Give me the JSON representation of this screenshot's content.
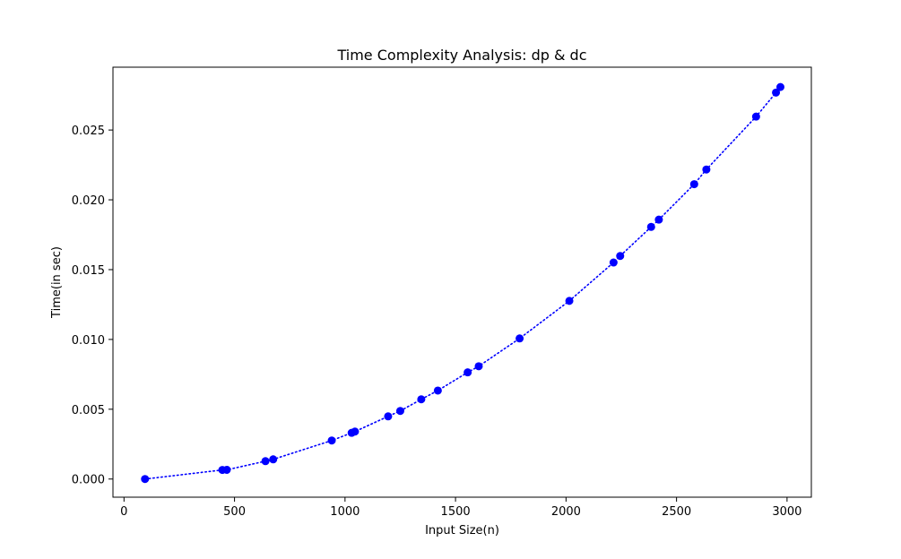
{
  "chart_data": {
    "type": "line",
    "title": "Time Complexity Analysis: dp & dc",
    "xlabel": "Input Size(n)",
    "ylabel": "Time(in sec)",
    "xlim": [
      -50,
      3110
    ],
    "ylim": [
      -0.0013,
      0.0295
    ],
    "xticks": [
      0,
      500,
      1000,
      1500,
      2000,
      2500,
      3000
    ],
    "xtick_labels": [
      "0",
      "500",
      "1000",
      "1500",
      "2000",
      "2500",
      "3000"
    ],
    "yticks": [
      0.0,
      0.005,
      0.01,
      0.015,
      0.02,
      0.025
    ],
    "ytick_labels": [
      "0.000",
      "0.005",
      "0.010",
      "0.015",
      "0.020",
      "0.025"
    ],
    "grid": false,
    "series": [
      {
        "color": "#0000ff",
        "line_style": "dotted",
        "marker": "circle",
        "points": [
          [
            95,
            0.0
          ],
          [
            445,
            0.00065
          ],
          [
            465,
            0.00066
          ],
          [
            640,
            0.00128
          ],
          [
            675,
            0.00141
          ],
          [
            940,
            0.00276
          ],
          [
            1030,
            0.00331
          ],
          [
            1045,
            0.0034
          ],
          [
            1195,
            0.00449
          ],
          [
            1250,
            0.00488
          ],
          [
            1345,
            0.00571
          ],
          [
            1420,
            0.00634
          ],
          [
            1555,
            0.00764
          ],
          [
            1605,
            0.00808
          ],
          [
            1790,
            0.01007
          ],
          [
            2015,
            0.01276
          ],
          [
            2215,
            0.01551
          ],
          [
            2245,
            0.01598
          ],
          [
            2385,
            0.01806
          ],
          [
            2420,
            0.01858
          ],
          [
            2580,
            0.02112
          ],
          [
            2635,
            0.02217
          ],
          [
            2860,
            0.02596
          ],
          [
            2950,
            0.02768
          ],
          [
            2970,
            0.02808
          ]
        ]
      }
    ]
  }
}
